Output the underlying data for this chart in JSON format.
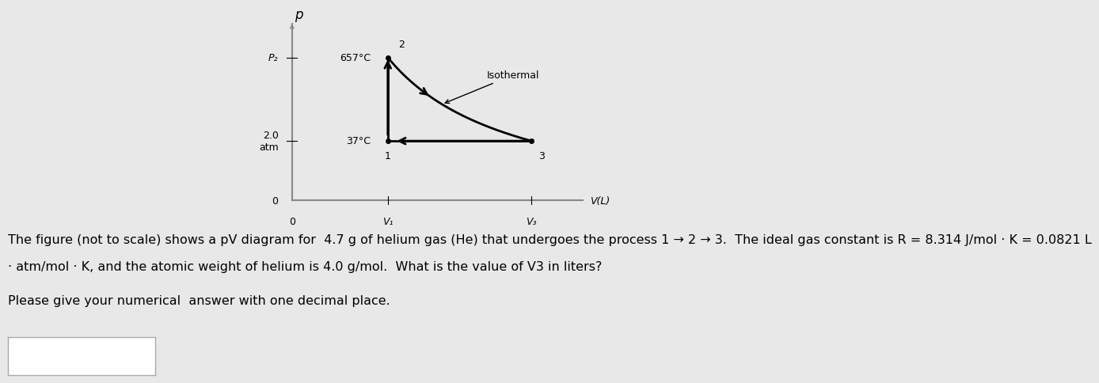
{
  "bg_color": "#e8e8e8",
  "plot_bg": "#ffffff",
  "fig_width": 12.0,
  "fig_height": 4.83,
  "p_label": "p",
  "p2_label": "P₂",
  "atm_label": "2.0\natm",
  "zero_label": "0",
  "v1_label": "V₁",
  "v3_label": "V₃",
  "vl_label": "V(L)",
  "temp1_label": "657°C",
  "temp2_label": "37°C",
  "isothermal_label": "Isothermal",
  "point1_label": "1",
  "point2_label": "2",
  "point3_label": "3",
  "text_line1": "The figure (not to scale) shows a pV diagram for  4.7 g of helium gas (He) that undergoes the process 1 → 2 → 3.  The ideal gas constant is R = 8.314 J/mol · K = 0.0821 L",
  "text_line2": "· atm/mol · K, and the atomic weight of helium is 4.0 g/mol.  What is the value of V3 in liters?",
  "text_line3": "Please give your numerical  answer with one decimal place.",
  "text_fontsize": 11.5,
  "axis_color": "#888888",
  "line_color": "#000000"
}
